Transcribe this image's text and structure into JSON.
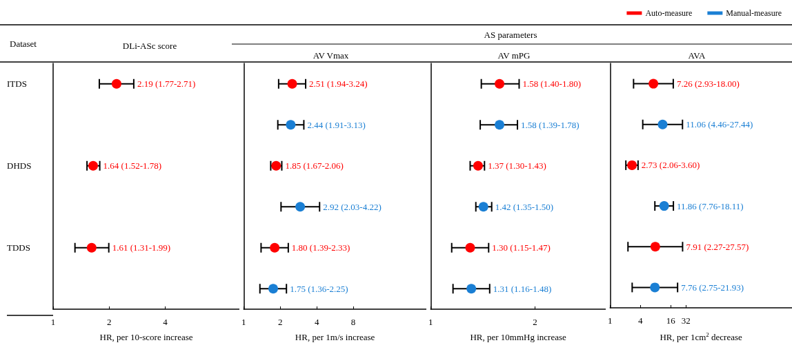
{
  "chart_data": [
    {
      "type": "scatter",
      "orientation": "horizontal",
      "title": "DLi-ASc score",
      "ylabel": "Dataset",
      "xlabel": "HR, per 10-score increase",
      "categories": [
        "ITDS",
        null,
        "DHDS",
        null,
        "TDDS",
        null
      ],
      "log": "x",
      "xlim": [
        1,
        10
      ],
      "xticks": [
        1,
        2,
        4
      ],
      "marker": "circle",
      "series": [
        {
          "color": "#ff0000",
          "values": [
            2.19,
            null,
            1.64,
            null,
            1.61,
            null
          ],
          "errors": [
            [
              1.77,
              2.71
            ],
            null,
            [
              1.52,
              1.78
            ],
            null,
            [
              1.31,
              1.99
            ],
            null
          ],
          "value_labels": [
            "2.19 (1.77-2.71)",
            null,
            "1.64 (1.52-1.78)",
            null,
            "1.61 (1.31-1.99)",
            null
          ]
        }
      ]
    },
    {
      "type": "scatter",
      "orientation": "horizontal",
      "title": "AV Vmax",
      "xlabel": "HR, per 1m/s increase",
      "categories": [
        null,
        null,
        null,
        null,
        null,
        null
      ],
      "tick_labels": "x",
      "log": "x",
      "xlim": [
        1,
        32
      ],
      "xticks": [
        1,
        2,
        4,
        8
      ],
      "marker": "circle",
      "series": [
        {
          "color": "#ff0000",
          "values": [
            2.51,
            null,
            1.85,
            null,
            1.8,
            null
          ],
          "errors": [
            [
              1.94,
              3.24
            ],
            null,
            [
              1.67,
              2.06
            ],
            null,
            [
              1.39,
              2.33
            ],
            null
          ],
          "value_labels": [
            "2.51 (1.94-3.24)",
            null,
            "1.85 (1.67-2.06)",
            null,
            "1.80 (1.39-2.33)",
            null
          ]
        },
        {
          "color": "#1a7fd4",
          "values": [
            null,
            2.44,
            null,
            2.92,
            null,
            1.75
          ],
          "errors": [
            null,
            [
              1.91,
              3.13
            ],
            null,
            [
              2.03,
              4.22
            ],
            null,
            [
              1.36,
              2.25
            ]
          ],
          "value_labels": [
            null,
            "2.44 (1.91-3.13)",
            null,
            "2.92 (2.03-4.22)",
            null,
            "1.75 (1.36-2.25)"
          ]
        }
      ]
    },
    {
      "type": "scatter",
      "orientation": "horizontal",
      "title": "AV mPG",
      "annotations": [
        "AS parameters"
      ],
      "xlabel": "HR, per 10mmHg increase",
      "categories": [
        null,
        null,
        null,
        null,
        null,
        null
      ],
      "tick_labels": "x",
      "log": "x",
      "xlim": [
        1,
        3.2
      ],
      "xticks": [
        1,
        2
      ],
      "marker": "circle",
      "series": [
        {
          "color": "#ff0000",
          "values": [
            1.58,
            null,
            1.37,
            null,
            1.3,
            null
          ],
          "errors": [
            [
              1.4,
              1.8
            ],
            null,
            [
              1.3,
              1.43
            ],
            null,
            [
              1.15,
              1.47
            ],
            null
          ],
          "value_labels": [
            "1.58 (1.40-1.80)",
            null,
            "1.37 (1.30-1.43)",
            null,
            "1.30 (1.15-1.47)",
            null
          ]
        },
        {
          "color": "#1a7fd4",
          "values": [
            null,
            1.58,
            null,
            1.42,
            null,
            1.31
          ],
          "errors": [
            null,
            [
              1.39,
              1.78
            ],
            null,
            [
              1.35,
              1.5
            ],
            null,
            [
              1.16,
              1.48
            ]
          ],
          "value_labels": [
            null,
            "1.58 (1.39-1.78)",
            null,
            "1.42 (1.35-1.50)",
            null,
            "1.31 (1.16-1.48)"
          ]
        }
      ]
    },
    {
      "type": "scatter",
      "orientation": "horizontal",
      "title": "AVA",
      "xlabel": "HR, per 1cm$^{2}$ decrease",
      "categories": [
        null,
        null,
        null,
        null,
        null,
        null
      ],
      "tick_labels": "x",
      "log": "x",
      "xlim": [
        1,
        4096
      ],
      "xticks": [
        1,
        4,
        16,
        32
      ],
      "marker": "circle",
      "legend": "top right",
      "series": [
        {
          "name": "Auto-measure",
          "color": "#ff0000",
          "values": [
            7.26,
            null,
            2.73,
            null,
            7.91,
            null
          ],
          "errors": [
            [
              2.93,
              18.0
            ],
            null,
            [
              2.06,
              3.6
            ],
            null,
            [
              2.27,
              27.57
            ],
            null
          ],
          "value_labels": [
            "7.26 (2.93-18.00)",
            null,
            "2.73 (2.06-3.60)",
            null,
            "7.91 (2.27-27.57)",
            null
          ]
        },
        {
          "name": "Manual-measure",
          "color": "#1a7fd4",
          "values": [
            null,
            11.06,
            null,
            11.86,
            null,
            7.76
          ],
          "errors": [
            null,
            [
              4.46,
              27.44
            ],
            null,
            [
              7.76,
              18.11
            ],
            null,
            [
              2.75,
              21.93
            ]
          ],
          "value_labels": [
            null,
            "11.06 (4.46-27.44)",
            null,
            "11.86 (7.76-18.11)",
            null,
            "7.76 (2.75-21.93)"
          ]
        }
      ]
    }
  ]
}
